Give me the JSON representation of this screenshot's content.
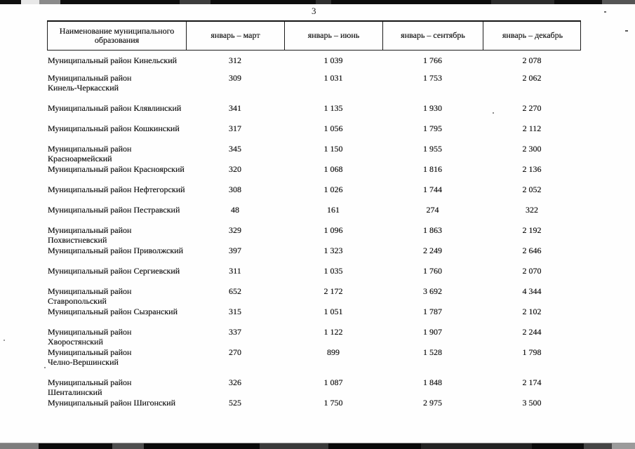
{
  "page": {
    "number": "3"
  },
  "colors": {
    "text": "#171717",
    "background": "#fefefe"
  },
  "table": {
    "columns": [
      {
        "label": "Наименование муниципального образования"
      },
      {
        "label": "январь – март"
      },
      {
        "label": "январь – июнь"
      },
      {
        "label": "январь – сентябрь"
      },
      {
        "label": "январь – декабрь"
      }
    ],
    "rows": [
      {
        "name": "Муниципальный район Кинельский",
        "values": [
          "312",
          "1 039",
          "1 766",
          "2 078"
        ]
      },
      {
        "name": "Муниципальный район\nКинель-Черкасский",
        "values": [
          "309",
          "1 031",
          "1 753",
          "2 062"
        ]
      },
      {
        "name": "Муниципальный район Клявлинский",
        "values": [
          "341",
          "1 135",
          "1 930",
          "2 270"
        ]
      },
      {
        "name": "Муниципальный район Кошкинский",
        "values": [
          "317",
          "1 056",
          "1 795",
          "2 112"
        ]
      },
      {
        "name": "Муниципальный район Красноармейский",
        "values": [
          "345",
          "1 150",
          "1 955",
          "2 300"
        ]
      },
      {
        "name": "Муниципальный район Красноярский",
        "values": [
          "320",
          "1 068",
          "1 816",
          "2 136"
        ]
      },
      {
        "name": "Муниципальный район Нефтегорский",
        "values": [
          "308",
          "1 026",
          "1 744",
          "2 052"
        ]
      },
      {
        "name": "Муниципальный район Пестравский",
        "values": [
          "48",
          "161",
          "274",
          "322"
        ]
      },
      {
        "name": "Муниципальный район Похвистневский",
        "values": [
          "329",
          "1 096",
          "1 863",
          "2 192"
        ]
      },
      {
        "name": "Муниципальный район Приволжский",
        "values": [
          "397",
          "1 323",
          "2 249",
          "2 646"
        ]
      },
      {
        "name": "Муниципальный район Сергиевский",
        "values": [
          "311",
          "1 035",
          "1 760",
          "2 070"
        ]
      },
      {
        "name": "Муниципальный район Ставропольский",
        "values": [
          "652",
          "2 172",
          "3 692",
          "4 344"
        ]
      },
      {
        "name": "Муниципальный район Сызранский",
        "values": [
          "315",
          "1 051",
          "1 787",
          "2 102"
        ]
      },
      {
        "name": "Муниципальный район Хворостянский",
        "values": [
          "337",
          "1 122",
          "1 907",
          "2 244"
        ]
      },
      {
        "name": "Муниципальный район\nЧелно-Вершинский",
        "values": [
          "270",
          "899",
          "1 528",
          "1 798"
        ]
      },
      {
        "name": "Муниципальный район Шенталинский",
        "values": [
          "326",
          "1 087",
          "1 848",
          "2 174"
        ]
      },
      {
        "name": "Муниципальный район Шигонский",
        "values": [
          "525",
          "1 750",
          "2 975",
          "3 500"
        ]
      }
    ]
  }
}
